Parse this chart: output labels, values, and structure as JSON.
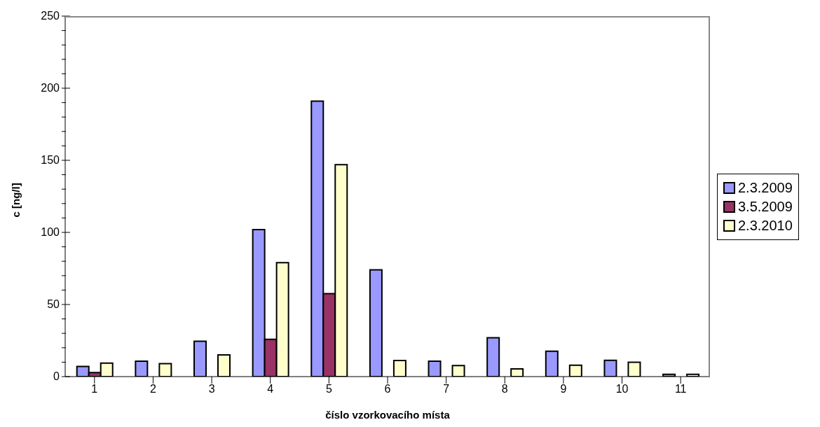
{
  "chart_data": {
    "type": "bar",
    "xlabel": "číslo vzorkovacího místa",
    "ylabel": "c [ng/l]",
    "categories": [
      "1",
      "2",
      "3",
      "4",
      "5",
      "6",
      "7",
      "8",
      "9",
      "10",
      "11"
    ],
    "series": [
      {
        "name": "2.3.2009",
        "color": "#9999ff",
        "values": [
          7.0,
          10.7,
          24.5,
          102,
          191,
          74,
          10.7,
          27,
          17.6,
          11.3,
          1.6
        ]
      },
      {
        "name": "3.5.2009",
        "color": "#993366",
        "values": [
          2.8,
          null,
          null,
          25.8,
          57.5,
          null,
          null,
          null,
          null,
          null,
          null
        ]
      },
      {
        "name": "2.3.2010",
        "color": "#ffffcc",
        "values": [
          9.4,
          9.0,
          15.1,
          79,
          147,
          11.2,
          7.6,
          5.4,
          7.9,
          10.0,
          1.6
        ]
      }
    ],
    "ylim": [
      0,
      250
    ],
    "yticks": [
      0,
      {
        "value": 10,
        "label": null
      },
      {
        "value": 20,
        "label": null
      },
      {
        "value": 30,
        "label": null
      },
      {
        "value": 40,
        "label": null
      },
      50,
      {
        "value": 60,
        "label": null
      },
      {
        "value": 70,
        "label": null
      },
      {
        "value": 80,
        "label": null
      },
      {
        "value": 90,
        "label": null
      },
      100,
      {
        "value": 110,
        "label": null
      },
      {
        "value": 120,
        "label": null
      },
      {
        "value": 130,
        "label": null
      },
      {
        "value": 140,
        "label": null
      },
      150,
      {
        "value": 160,
        "label": null
      },
      {
        "value": 170,
        "label": null
      },
      {
        "value": 180,
        "label": null
      },
      {
        "value": 190,
        "label": null
      },
      200,
      {
        "value": 210,
        "label": null
      },
      {
        "value": 220,
        "label": null
      },
      {
        "value": 230,
        "label": null
      },
      {
        "value": 240,
        "label": null
      },
      250
    ],
    "grid": false,
    "legend": "right"
  }
}
